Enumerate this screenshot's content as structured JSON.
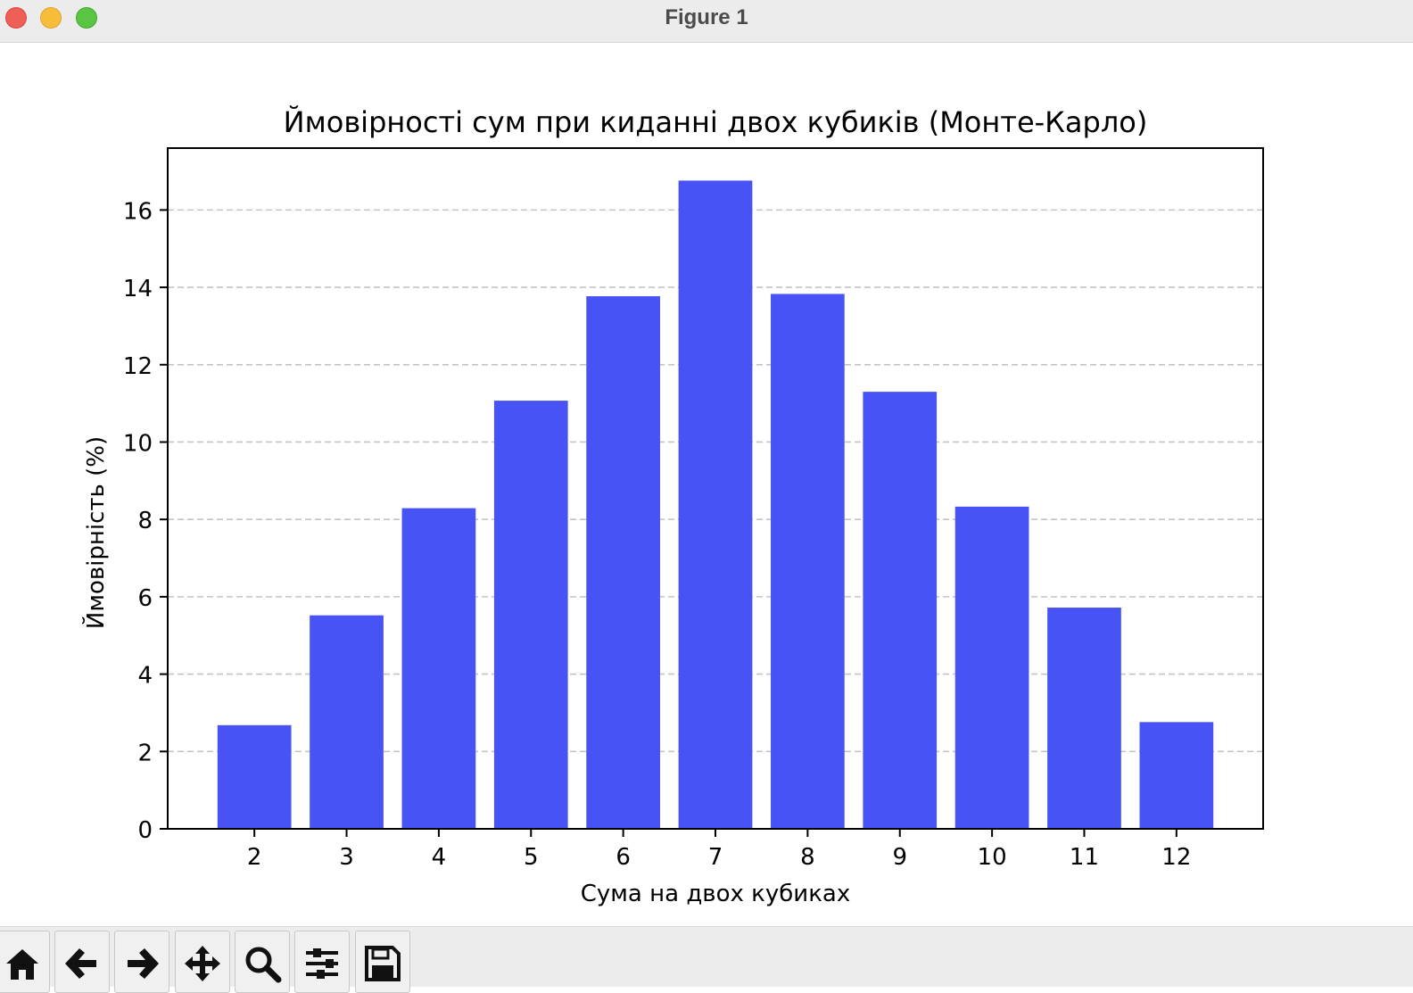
{
  "window": {
    "title": "Figure 1"
  },
  "toolbar": {
    "buttons": [
      {
        "name": "home-button",
        "icon": "home-icon"
      },
      {
        "name": "back-button",
        "icon": "arrow-left-icon"
      },
      {
        "name": "forward-button",
        "icon": "arrow-right-icon"
      },
      {
        "name": "pan-button",
        "icon": "move-icon"
      },
      {
        "name": "zoom-button",
        "icon": "search-icon"
      },
      {
        "name": "configure-subplots-button",
        "icon": "sliders-icon"
      },
      {
        "name": "save-button",
        "icon": "save-icon"
      }
    ]
  },
  "chart_data": {
    "type": "bar",
    "title": "Ймовірності сум при киданні двох кубиків (Монте-Карло)",
    "xlabel": "Сума на двох кубиках",
    "ylabel": "Ймовірність (%)",
    "categories": [
      "2",
      "3",
      "4",
      "5",
      "6",
      "7",
      "8",
      "9",
      "10",
      "11",
      "12"
    ],
    "values": [
      2.68,
      5.52,
      8.29,
      11.07,
      13.77,
      16.76,
      13.83,
      11.3,
      8.33,
      5.72,
      2.76
    ],
    "ylim": [
      0,
      17.6
    ],
    "yticks": [
      0,
      2,
      4,
      6,
      8,
      10,
      12,
      14,
      16
    ],
    "bar_color": "#4853f5",
    "grid": "y-dashed"
  }
}
